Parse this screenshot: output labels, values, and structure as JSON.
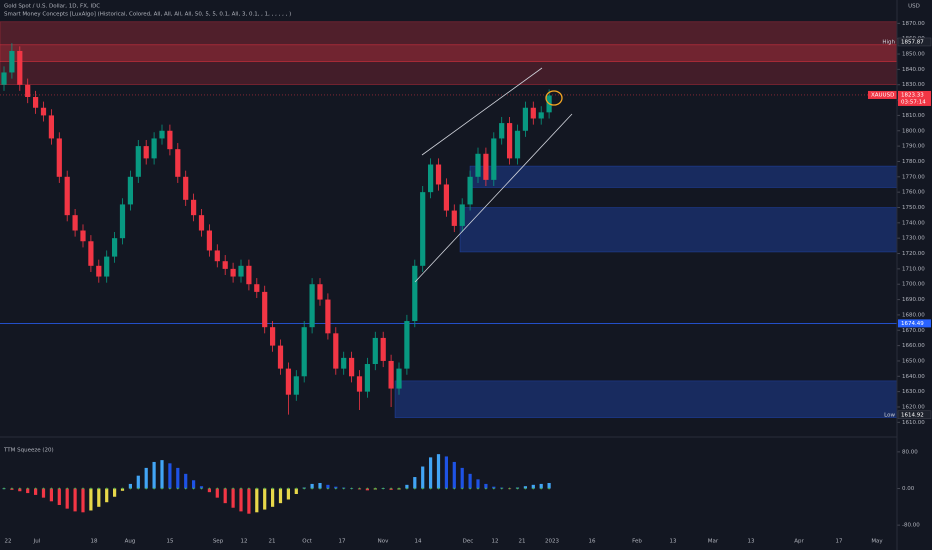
{
  "chart_data": {
    "type": "candlestick",
    "title": "Gold Spot / U.S. Dollar, 1D, FX, IDC",
    "indicator": "Smart Money Concepts [LuxAlgo] (Historical, Colored, All, All, All, All, 50, 5, 5, 0.1, All, 3, 0.1, , 1, , , , , , )",
    "currency": "USD",
    "symbol": "XAUUSD",
    "countdown": "03:57:14",
    "up_color": "#089981",
    "down_color": "#f23645",
    "ylim": [
      1605,
      1880
    ],
    "yticks": [
      {
        "value": 1610,
        "label": "1610.00"
      },
      {
        "value": 1620,
        "label": "1620.00"
      },
      {
        "value": 1630,
        "label": "1630.00"
      },
      {
        "value": 1640,
        "label": "1640.00"
      },
      {
        "value": 1650,
        "label": "1650.00"
      },
      {
        "value": 1660,
        "label": "1660.00"
      },
      {
        "value": 1670,
        "label": "1670.00"
      },
      {
        "value": 1680,
        "label": "1680.00"
      },
      {
        "value": 1690,
        "label": "1690.00"
      },
      {
        "value": 1700,
        "label": "1700.00"
      },
      {
        "value": 1710,
        "label": "1710.00"
      },
      {
        "value": 1720,
        "label": "1720.00"
      },
      {
        "value": 1730,
        "label": "1730.00"
      },
      {
        "value": 1740,
        "label": "1740.00"
      },
      {
        "value": 1750,
        "label": "1750.00"
      },
      {
        "value": 1760,
        "label": "1760.00"
      },
      {
        "value": 1770,
        "label": "1770.00"
      },
      {
        "value": 1780,
        "label": "1780.00"
      },
      {
        "value": 1790,
        "label": "1790.00"
      },
      {
        "value": 1800,
        "label": "1800.00"
      },
      {
        "value": 1810,
        "label": "1810.00"
      },
      {
        "value": 1820,
        "label": "1820.00"
      },
      {
        "value": 1830,
        "label": "1830.00"
      },
      {
        "value": 1840,
        "label": "1840.00"
      },
      {
        "value": 1850,
        "label": "1850.00"
      },
      {
        "value": 1860,
        "label": "1860.00"
      },
      {
        "value": 1870,
        "label": "1870.00"
      }
    ],
    "time_labels": [
      "22",
      "Jul",
      "18",
      "Aug",
      "15",
      "Sep",
      "12",
      "21",
      "Oct",
      "17",
      "Nov",
      "14",
      "Dec",
      "12",
      "21",
      "2023",
      "16",
      "Feb",
      "13",
      "Mar",
      "13",
      "Apr",
      "17",
      "May"
    ],
    "candles": [
      [
        1830,
        1842,
        1826,
        1838
      ],
      [
        1838,
        1857,
        1834,
        1852
      ],
      [
        1852,
        1855,
        1826,
        1830
      ],
      [
        1830,
        1834,
        1818,
        1822
      ],
      [
        1822,
        1826,
        1811,
        1815
      ],
      [
        1815,
        1819,
        1806,
        1810
      ],
      [
        1810,
        1814,
        1791,
        1795
      ],
      [
        1795,
        1799,
        1766,
        1770
      ],
      [
        1770,
        1774,
        1741,
        1745
      ],
      [
        1745,
        1749,
        1731,
        1735
      ],
      [
        1735,
        1739,
        1724,
        1728
      ],
      [
        1728,
        1732,
        1708,
        1712
      ],
      [
        1712,
        1716,
        1701,
        1705
      ],
      [
        1705,
        1722,
        1701,
        1718
      ],
      [
        1718,
        1734,
        1714,
        1730
      ],
      [
        1730,
        1756,
        1726,
        1752
      ],
      [
        1752,
        1774,
        1748,
        1770
      ],
      [
        1770,
        1794,
        1766,
        1790
      ],
      [
        1790,
        1794,
        1778,
        1782
      ],
      [
        1782,
        1799,
        1778,
        1795
      ],
      [
        1795,
        1804,
        1791,
        1800
      ],
      [
        1800,
        1804,
        1784,
        1788
      ],
      [
        1788,
        1792,
        1766,
        1770
      ],
      [
        1770,
        1774,
        1751,
        1755
      ],
      [
        1755,
        1759,
        1741,
        1745
      ],
      [
        1745,
        1749,
        1731,
        1735
      ],
      [
        1735,
        1739,
        1718,
        1722
      ],
      [
        1722,
        1726,
        1711,
        1715
      ],
      [
        1715,
        1719,
        1706,
        1710
      ],
      [
        1710,
        1714,
        1701,
        1705
      ],
      [
        1705,
        1716,
        1701,
        1712
      ],
      [
        1712,
        1716,
        1696,
        1700
      ],
      [
        1700,
        1704,
        1691,
        1695
      ],
      [
        1695,
        1699,
        1668,
        1672
      ],
      [
        1672,
        1676,
        1656,
        1660
      ],
      [
        1660,
        1664,
        1641,
        1645
      ],
      [
        1645,
        1649,
        1615,
        1628
      ],
      [
        1628,
        1644,
        1624,
        1640
      ],
      [
        1640,
        1676,
        1636,
        1672
      ],
      [
        1672,
        1704,
        1668,
        1700
      ],
      [
        1700,
        1704,
        1686,
        1690
      ],
      [
        1690,
        1694,
        1664,
        1668
      ],
      [
        1668,
        1672,
        1641,
        1645
      ],
      [
        1645,
        1656,
        1641,
        1652
      ],
      [
        1652,
        1656,
        1636,
        1640
      ],
      [
        1640,
        1644,
        1618,
        1630
      ],
      [
        1630,
        1652,
        1626,
        1648
      ],
      [
        1648,
        1669,
        1644,
        1665
      ],
      [
        1665,
        1669,
        1646,
        1650
      ],
      [
        1650,
        1654,
        1620,
        1632
      ],
      [
        1632,
        1649,
        1628,
        1645
      ],
      [
        1645,
        1680,
        1641,
        1676
      ],
      [
        1676,
        1716,
        1672,
        1712
      ],
      [
        1712,
        1764,
        1708,
        1760
      ],
      [
        1760,
        1782,
        1756,
        1778
      ],
      [
        1778,
        1782,
        1761,
        1765
      ],
      [
        1765,
        1769,
        1744,
        1748
      ],
      [
        1748,
        1752,
        1734,
        1738
      ],
      [
        1738,
        1756,
        1734,
        1752
      ],
      [
        1752,
        1774,
        1748,
        1770
      ],
      [
        1770,
        1789,
        1766,
        1785
      ],
      [
        1785,
        1789,
        1764,
        1768
      ],
      [
        1768,
        1799,
        1764,
        1795
      ],
      [
        1795,
        1809,
        1791,
        1805
      ],
      [
        1805,
        1809,
        1778,
        1782
      ],
      [
        1782,
        1804,
        1778,
        1800
      ],
      [
        1800,
        1819,
        1796,
        1815
      ],
      [
        1815,
        1819,
        1804,
        1808
      ],
      [
        1808,
        1816,
        1804,
        1812
      ],
      [
        1812,
        1827,
        1808,
        1823
      ]
    ],
    "supply_zones": [
      {
        "top": 1871,
        "bottom": 1856
      },
      {
        "top": 1856,
        "bottom": 1845
      },
      {
        "top": 1845,
        "bottom": 1830
      }
    ],
    "demand_zones": [
      {
        "top": 1777,
        "bottom": 1763
      },
      {
        "top": 1750,
        "bottom": 1721
      },
      {
        "top": 1637,
        "bottom": 1613
      }
    ],
    "high": {
      "label": "High",
      "value": 1857.87
    },
    "low": {
      "label": "Low",
      "value": 1614.92
    },
    "last_price": 1823.33,
    "level": 1674.49,
    "squeeze": {
      "title": "TTM Squeeze (20)",
      "ylim": [
        -95,
        95
      ],
      "yticks": [
        {
          "value": 80,
          "label": "80.00"
        },
        {
          "value": 0,
          "label": "0.00"
        },
        {
          "value": -80,
          "label": "-80.00"
        }
      ],
      "colors": {
        "up_rising": "#42a5f5",
        "up_falling": "#1e53e5",
        "down_falling": "#f23645",
        "down_rising": "#e8d84a"
      },
      "values": [
        0,
        -3,
        -6,
        -10,
        -14,
        -20,
        -28,
        -36,
        -44,
        -50,
        -52,
        -48,
        -40,
        -30,
        -18,
        -5,
        10,
        28,
        45,
        58,
        62,
        55,
        45,
        32,
        18,
        5,
        -8,
        -20,
        -32,
        -42,
        -50,
        -55,
        -52,
        -46,
        -40,
        -32,
        -24,
        -12,
        2,
        10,
        12,
        8,
        4,
        2,
        1,
        -2,
        -4,
        -2,
        1,
        -3,
        -2,
        8,
        25,
        48,
        68,
        75,
        70,
        58,
        45,
        32,
        20,
        10,
        4,
        2,
        -1,
        2,
        5,
        8,
        10,
        12
      ]
    }
  }
}
